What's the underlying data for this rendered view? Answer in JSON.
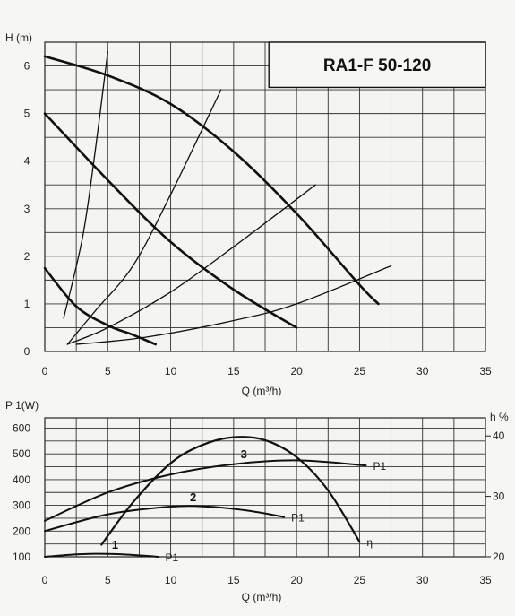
{
  "title": "RA1-F 50-120",
  "chart_data": [
    {
      "id": "head",
      "type": "line",
      "title": "RA1-F 50-120",
      "ylabel": "H (m)",
      "xlabel": "Q (m³/h)",
      "xlim": [
        0,
        35
      ],
      "ylim": [
        0,
        6.5
      ],
      "xticks": [
        0,
        5,
        10,
        15,
        20,
        25,
        30,
        35
      ],
      "yticks": [
        0,
        1,
        2,
        3,
        4,
        5,
        6
      ],
      "grid": true,
      "series": [
        {
          "role": "pump-curve",
          "x": [
            0,
            5,
            10,
            15,
            20,
            25,
            26.5
          ],
          "y": [
            6.2,
            5.8,
            5.2,
            4.2,
            2.9,
            1.4,
            1.0
          ]
        },
        {
          "role": "pump-curve",
          "x": [
            0,
            5,
            10,
            15,
            20
          ],
          "y": [
            5.0,
            3.6,
            2.3,
            1.3,
            0.5
          ]
        },
        {
          "role": "pump-curve",
          "x": [
            0,
            2.5,
            5,
            7,
            8.8
          ],
          "y": [
            1.75,
            0.95,
            0.55,
            0.35,
            0.15
          ]
        },
        {
          "role": "system-curve",
          "x": [
            1.5,
            3,
            4,
            5
          ],
          "y": [
            0.7,
            2.4,
            4.2,
            6.3
          ]
        },
        {
          "role": "system-curve",
          "x": [
            1.8,
            4,
            7,
            10,
            14
          ],
          "y": [
            0.15,
            0.85,
            1.8,
            3.3,
            5.5
          ]
        },
        {
          "role": "system-curve",
          "x": [
            1.8,
            5,
            10,
            15,
            21.5
          ],
          "y": [
            0.15,
            0.5,
            1.25,
            2.2,
            3.5
          ]
        },
        {
          "role": "system-curve",
          "x": [
            2.5,
            8,
            15,
            20,
            27.5
          ],
          "y": [
            0.15,
            0.3,
            0.65,
            1.0,
            1.8
          ]
        }
      ]
    },
    {
      "id": "power",
      "type": "line",
      "ylabel": "P 1(W)",
      "y2label": "h %",
      "xlabel": "Q (m³/h)",
      "xlim": [
        0,
        35
      ],
      "ylim": [
        100,
        640
      ],
      "y2lim": [
        20,
        43
      ],
      "xticks": [
        0,
        5,
        10,
        15,
        20,
        25,
        30,
        35
      ],
      "yticks": [
        100,
        200,
        300,
        400,
        500,
        600
      ],
      "y2ticks": [
        20,
        30,
        40
      ],
      "grid": true,
      "series": [
        {
          "name": "P1",
          "speed_label": "1",
          "axis": "left",
          "x": [
            0,
            2,
            4,
            6,
            8,
            9
          ],
          "y": [
            100,
            108,
            112,
            110,
            104,
            100
          ]
        },
        {
          "name": "P1",
          "speed_label": "2",
          "axis": "left",
          "x": [
            0,
            5,
            10,
            13,
            16,
            19
          ],
          "y": [
            200,
            265,
            295,
            295,
            280,
            255
          ]
        },
        {
          "name": "P1",
          "speed_label": "3",
          "axis": "left",
          "x": [
            0,
            5,
            10,
            15,
            20,
            25.5
          ],
          "y": [
            240,
            350,
            420,
            460,
            475,
            455
          ]
        },
        {
          "name": "η",
          "axis": "right",
          "x": [
            4.5,
            7,
            10,
            12.5,
            15,
            17.5,
            20,
            22.5,
            25
          ],
          "y": [
            22,
            29,
            35.5,
            38.5,
            39.8,
            39.3,
            36.5,
            31,
            22.5
          ]
        }
      ]
    }
  ]
}
